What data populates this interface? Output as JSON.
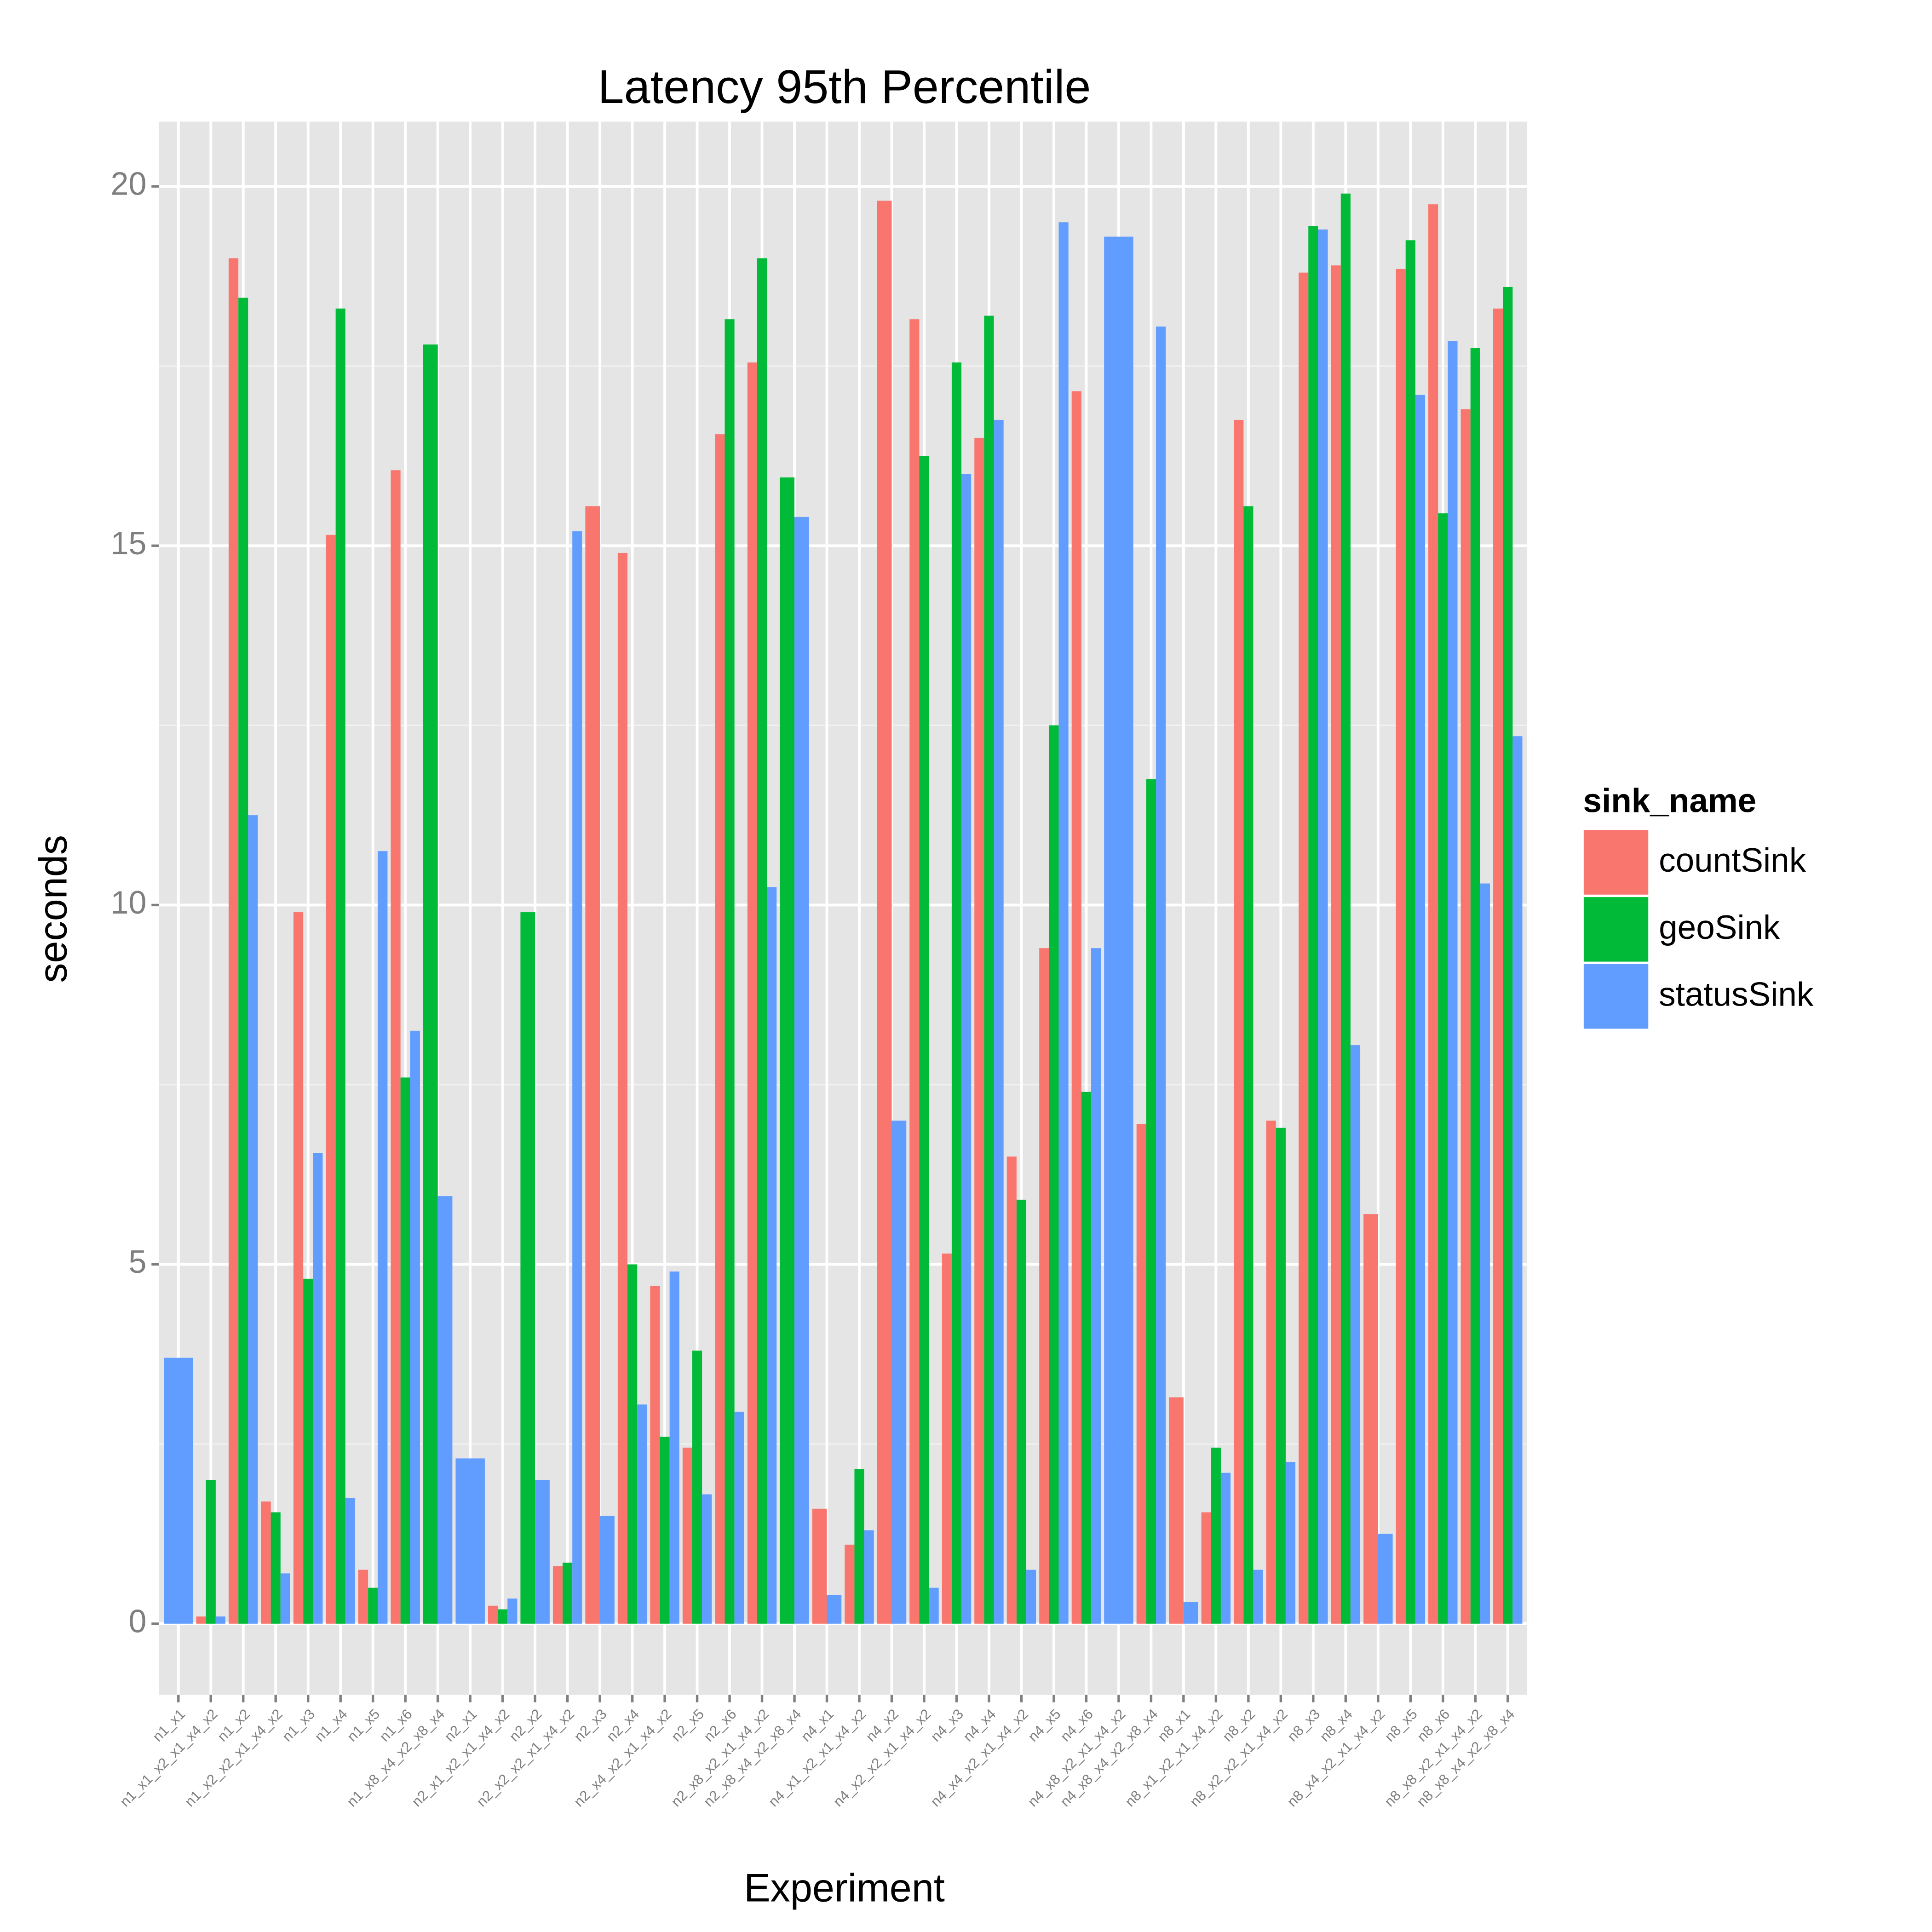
{
  "chart_data": {
    "type": "bar",
    "title": "Latency 95th Percentile",
    "x_label": "Experiment",
    "y_label": "seconds",
    "categories": [
      "n1_x1",
      "n1_x1_x2_x1_x4_x2",
      "n1_x2",
      "n1_x2_x2_x1_x4_x2",
      "n1_x3",
      "n1_x4",
      "n1_x5",
      "n1_x6",
      "n1_x8_x4_x2_x8_x4",
      "n2_x1",
      "n2_x1_x2_x1_x4_x2",
      "n2_x2",
      "n2_x2_x2_x1_x4_x2",
      "n2_x3",
      "n2_x4",
      "n2_x4_x2_x1_x4_x2",
      "n2_x5",
      "n2_x6",
      "n2_x8_x2_x1_x4_x2",
      "n2_x8_x4_x2_x8_x4",
      "n4_x1",
      "n4_x1_x2_x1_x4_x2",
      "n4_x2",
      "n4_x2_x2_x1_x4_x2",
      "n4_x3",
      "n4_x4",
      "n4_x4_x2_x1_x4_x2",
      "n4_x5",
      "n4_x6",
      "n4_x8_x2_x1_x4_x2",
      "n4_x8_x4_x2_x8_x4",
      "n8_x1",
      "n8_x1_x2_x1_x4_x2",
      "n8_x2",
      "n8_x2_x2_x1_x4_x2",
      "n8_x3",
      "n8_x4",
      "n8_x4_x2_x1_x4_x2",
      "n8_x5",
      "n8_x6",
      "n8_x8_x2_x1_x4_x2",
      "n8_x8_x4_x2_x8_x4"
    ],
    "legend_title": "sink_name",
    "series": [
      {
        "name": "countSink",
        "color": "#F8766D",
        "values": [
          null,
          0.1,
          19.0,
          1.7,
          9.9,
          15.15,
          0.75,
          16.05,
          null,
          null,
          0.25,
          null,
          0.8,
          15.55,
          14.9,
          4.7,
          2.45,
          16.55,
          17.55,
          null,
          1.6,
          1.1,
          19.8,
          18.15,
          5.15,
          16.5,
          6.5,
          9.4,
          17.15,
          null,
          6.95,
          3.15,
          1.55,
          16.75,
          7.0,
          18.8,
          18.9,
          5.7,
          18.85,
          19.75,
          16.9,
          18.3
        ]
      },
      {
        "name": "geoSink",
        "color": "#00BA38",
        "values": [
          null,
          2.0,
          18.45,
          1.55,
          4.8,
          18.3,
          0.5,
          7.6,
          17.8,
          null,
          0.2,
          9.9,
          0.85,
          null,
          5.0,
          2.6,
          3.8,
          18.15,
          19.0,
          15.95,
          null,
          2.15,
          null,
          16.25,
          17.55,
          18.2,
          5.9,
          12.5,
          7.4,
          null,
          11.75,
          null,
          2.45,
          15.55,
          6.9,
          19.45,
          19.9,
          null,
          19.25,
          15.45,
          17.75,
          18.6
        ]
      },
      {
        "name": "statusSink",
        "color": "#619CFF",
        "values": [
          3.7,
          0.1,
          11.25,
          0.7,
          6.55,
          1.75,
          10.75,
          8.25,
          5.95,
          2.3,
          0.35,
          2.0,
          15.2,
          1.5,
          3.05,
          4.9,
          1.8,
          2.95,
          10.25,
          15.4,
          0.4,
          1.3,
          7.0,
          0.5,
          16.0,
          16.75,
          0.75,
          19.5,
          9.4,
          19.3,
          18.05,
          0.3,
          2.1,
          0.75,
          2.25,
          19.4,
          8.05,
          1.25,
          17.1,
          17.85,
          10.3,
          12.35
        ]
      }
    ],
    "ylim": [
      -0.99,
      20.9
    ],
    "yticks": [
      0,
      5,
      10,
      15,
      20
    ],
    "grid": true,
    "legend_position": "right"
  }
}
